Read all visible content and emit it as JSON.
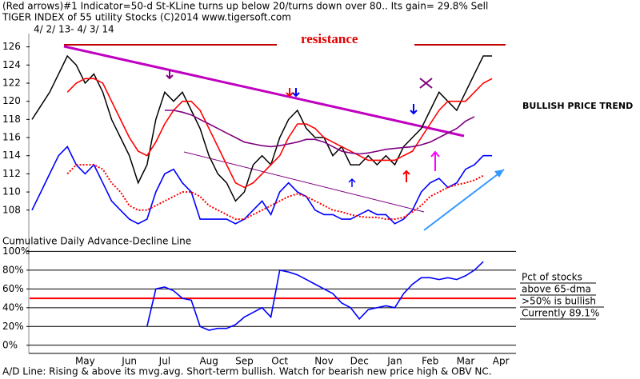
{
  "chart_data": [
    {
      "type": "line",
      "header": "(Red arrows)#1 Indicator=50-d St-KLine turns up below 20/turns down over 80.. Its gain= 29.8% Sell",
      "title": "TIGER INDEX of  55 utility Stocks  (C)2014  www.tigersoft.com",
      "subtitle": "4/ 2/ 13-  4/ 3/ 14",
      "annotations": [
        "resistance",
        "BULLISH PRICE TREND"
      ],
      "ylim": [
        105.6,
        127.2
      ],
      "yticks": [
        108,
        110,
        112,
        114,
        116,
        118,
        120,
        122,
        124,
        126
      ],
      "series": [
        {
          "color": "#000000",
          "values": [
            118,
            119.5,
            121,
            123,
            125,
            124,
            122,
            123,
            121,
            118,
            116,
            114,
            111,
            113,
            118,
            121,
            120,
            121,
            119,
            117,
            114,
            112,
            111,
            109,
            110,
            113,
            114,
            113,
            116,
            118,
            119,
            117,
            116,
            116,
            114,
            115,
            113,
            113,
            114,
            113,
            114,
            113,
            115,
            116,
            117,
            119,
            121,
            120,
            119,
            121,
            123,
            125,
            125,
            null
          ]
        },
        {
          "color": "#ff0000",
          "values": [
            null,
            null,
            null,
            null,
            121,
            122,
            122.5,
            122.5,
            122,
            120,
            118,
            116,
            114.5,
            114,
            115.5,
            117.5,
            119,
            120,
            120,
            119,
            117,
            115,
            113,
            111,
            110.5,
            111,
            112,
            113,
            114,
            116,
            117.5,
            117.5,
            117,
            116,
            115.5,
            115,
            114.5,
            114,
            113.5,
            113.5,
            113.5,
            113.5,
            114,
            114.5,
            116,
            117.5,
            119,
            120,
            120,
            120,
            121,
            122,
            122.5,
            null
          ]
        },
        {
          "color": "#800080",
          "values": [
            null,
            null,
            null,
            null,
            null,
            null,
            null,
            null,
            null,
            null,
            null,
            null,
            null,
            null,
            null,
            119,
            119,
            118.8,
            118.5,
            118,
            117.5,
            117,
            116.5,
            116,
            115.5,
            115.3,
            115.1,
            115,
            115.1,
            115.3,
            115.5,
            115.8,
            115.8,
            115.5,
            115,
            114.5,
            114.3,
            114.2,
            114.3,
            114.5,
            114.7,
            114.8,
            114.9,
            115,
            115.2,
            115.5,
            116,
            116.5,
            117,
            117.8,
            118.3,
            null,
            null,
            null
          ]
        },
        {
          "color": "#0000ff",
          "values": [
            108,
            110,
            112,
            114,
            115,
            113,
            112,
            113,
            111,
            109,
            108,
            107,
            106.5,
            107,
            110,
            112,
            112.5,
            111,
            110,
            107,
            107,
            107,
            107,
            106.5,
            107,
            108,
            109,
            107.5,
            110,
            111,
            110,
            109.5,
            108,
            107.5,
            107.5,
            107,
            107,
            107.5,
            108,
            107.5,
            107.5,
            106.5,
            107,
            108,
            110,
            111,
            111.5,
            110.5,
            111,
            112.5,
            113,
            114,
            114,
            null
          ]
        },
        {
          "color": "#ff0000",
          "dash": true,
          "values": [
            null,
            null,
            null,
            null,
            112,
            113,
            113,
            113,
            112.5,
            111,
            110,
            108.5,
            108,
            108,
            108.5,
            109,
            109.5,
            110,
            110,
            109.5,
            108.5,
            108,
            107.5,
            107,
            107,
            107.5,
            108,
            108.5,
            109,
            109.5,
            109.8,
            109.5,
            109,
            108.5,
            108,
            107.8,
            107.5,
            107.3,
            107.2,
            107.2,
            107,
            107,
            107.2,
            107.8,
            108.5,
            109.5,
            110,
            110.5,
            110.8,
            111,
            111.3,
            111.8,
            null,
            null
          ]
        }
      ]
    },
    {
      "type": "line",
      "title": "Cumulative Daily Advance-Decline Line",
      "categories": [
        null,
        null,
        null,
        null,
        null,
        null,
        "May",
        null,
        null,
        null,
        null,
        "Jun",
        null,
        null,
        null,
        "Jul",
        null,
        null,
        null,
        null,
        "Aug",
        null,
        null,
        null,
        "Sep",
        null,
        null,
        null,
        "Oct",
        null,
        null,
        null,
        null,
        "Nov",
        null,
        null,
        null,
        "Dec",
        null,
        null,
        null,
        "Jan",
        null,
        null,
        null,
        "Feb",
        null,
        null,
        null,
        "Mar",
        null,
        null,
        null,
        "Apr"
      ],
      "ylim": [
        -7,
        108
      ],
      "yticks": [
        {
          "value": 100,
          "label": "100%"
        },
        {
          "value": 80,
          "label": "80%"
        },
        {
          "value": 60,
          "label": "60%"
        },
        {
          "value": 40,
          "label": "40%"
        },
        {
          "value": 20,
          "label": "20%"
        },
        {
          "value": 0,
          "label": "0%"
        }
      ],
      "grid": true,
      "reference_line": {
        "value": 50,
        "color": "#ff0000"
      },
      "notes": [
        "Pct of stocks",
        "above 65-dma",
        ">50% is bullish",
        "Currently  89.1%"
      ],
      "footer": "A/D Line: Rising & above its mvg.avg. Short-term bullish. Watch for bearish new price high & OBV NC.",
      "series": [
        {
          "color": "#0000ff",
          "values": [
            null,
            null,
            null,
            null,
            null,
            null,
            null,
            null,
            null,
            null,
            null,
            null,
            null,
            20,
            60,
            62,
            58,
            50,
            48,
            20,
            16,
            18,
            18,
            22,
            30,
            35,
            40,
            30,
            80,
            78,
            75,
            70,
            65,
            60,
            55,
            45,
            40,
            28,
            38,
            40,
            42,
            40,
            55,
            65,
            72,
            72,
            70,
            72,
            70,
            74,
            80,
            89.1,
            null,
            null
          ]
        }
      ]
    }
  ]
}
